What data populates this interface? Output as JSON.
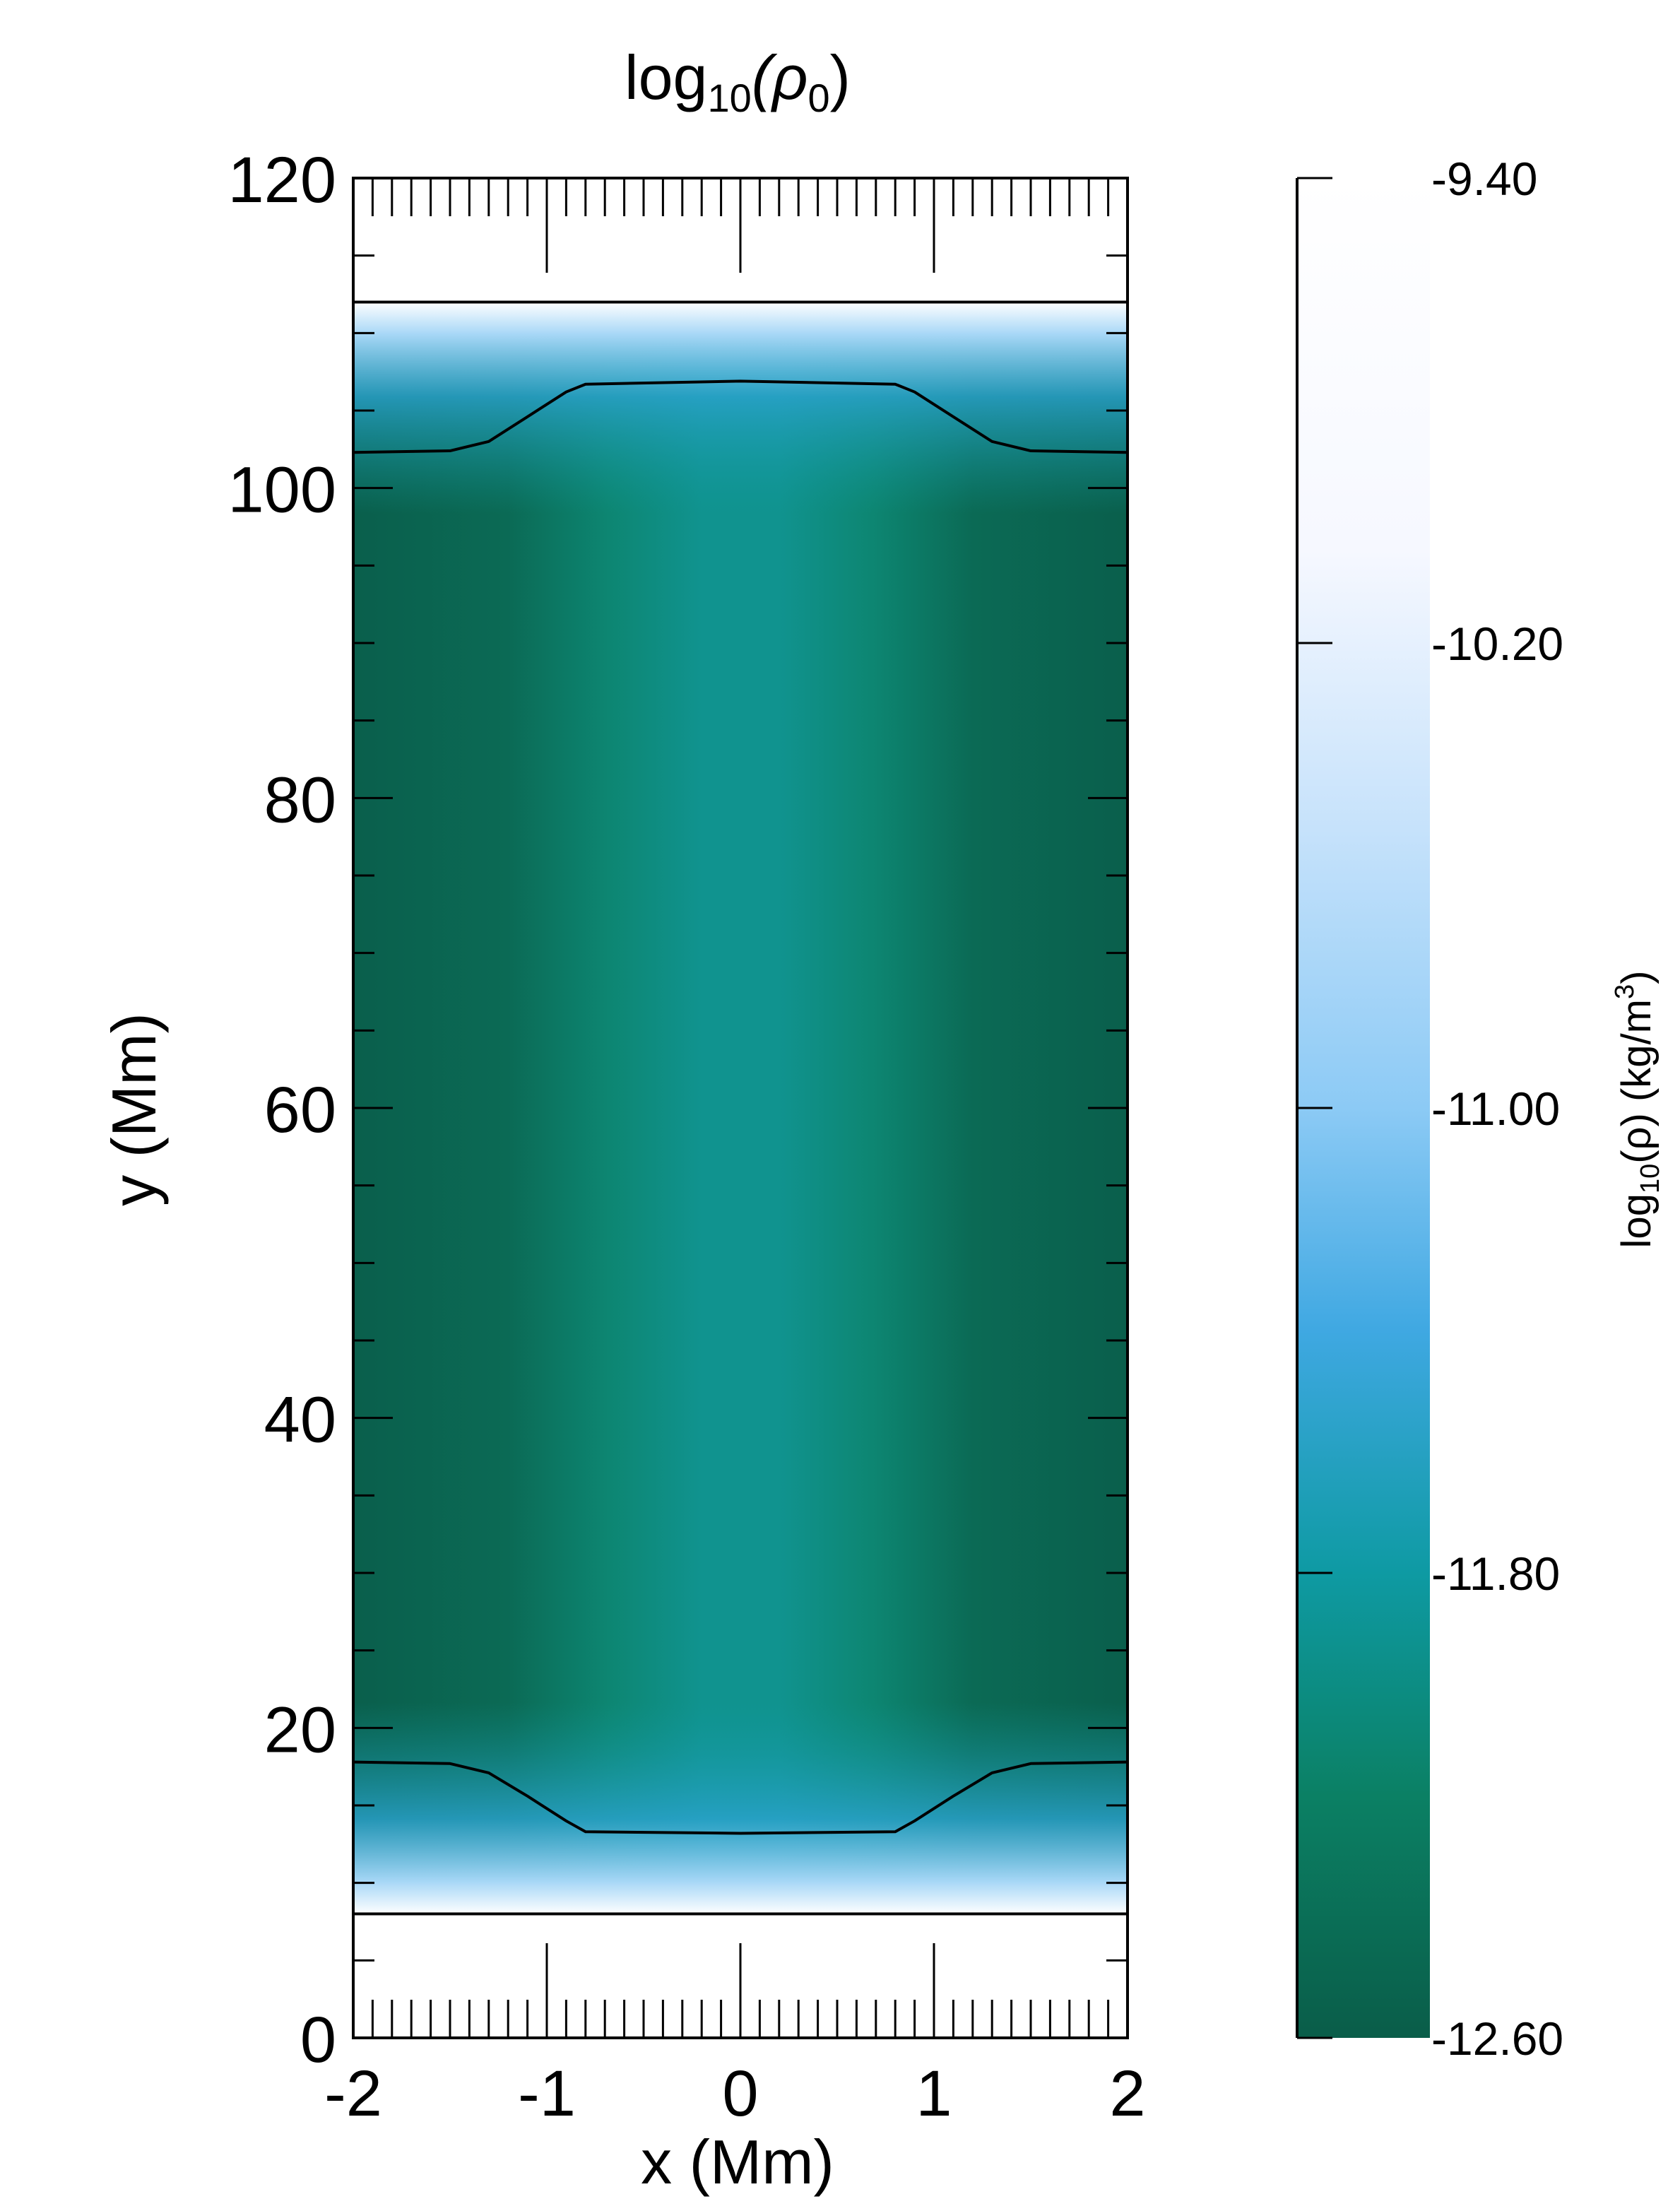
{
  "chart_data": {
    "type": "contour",
    "title": [
      "log",
      "10",
      "(ρ",
      "0",
      ")"
    ],
    "x_label": "x (Mm)",
    "y_label": "y (Mm)",
    "xlim": [
      -2,
      2
    ],
    "ylim": [
      0,
      120
    ],
    "xticks": [
      -2,
      -1,
      0,
      1,
      2
    ],
    "yticks": [
      0,
      20,
      40,
      60,
      80,
      100,
      120
    ],
    "xminorticks": [
      -1.9,
      -1.8,
      -1.7,
      -1.6,
      -1.5,
      -1.4,
      -1.3,
      -1.2,
      -1.1,
      -0.9,
      -0.8,
      -0.7,
      -0.6,
      -0.5,
      -0.4,
      -0.3,
      -0.2,
      -0.1,
      0.1,
      0.2,
      0.3,
      0.4,
      0.5,
      0.6,
      0.7,
      0.8,
      0.9,
      1.1,
      1.2,
      1.3,
      1.4,
      1.5,
      1.6,
      1.7,
      1.8,
      1.9
    ],
    "yminorticks": [
      5,
      10,
      15,
      25,
      30,
      35,
      45,
      50,
      55,
      65,
      70,
      75,
      85,
      90,
      95,
      105,
      110,
      115
    ],
    "domain_y": [
      8,
      112
    ],
    "contours": [
      {
        "x": [
          -2,
          -1.5,
          -1.3,
          -1.1,
          -0.9,
          -0.8,
          0,
          0.8,
          0.9,
          1.1,
          1.3,
          1.5,
          2
        ],
        "y": [
          102.3,
          102.4,
          103.0,
          104.6,
          106.2,
          106.7,
          106.9,
          106.7,
          106.2,
          104.6,
          103.0,
          102.4,
          102.3
        ]
      },
      {
        "x": [
          -2,
          -1.5,
          -1.3,
          -1.1,
          -0.9,
          -0.8,
          0,
          0.8,
          0.9,
          1.1,
          1.3,
          1.5,
          2
        ],
        "y": [
          17.8,
          17.7,
          17.1,
          15.6,
          14.0,
          13.3,
          13.2,
          13.3,
          14.0,
          15.6,
          17.1,
          17.7,
          17.8
        ]
      }
    ],
    "colorbar": {
      "label": [
        "log",
        "10",
        "(ρ)  (kg/m",
        "3",
        ")"
      ],
      "clim": [
        -12.6,
        -9.4
      ],
      "ticks": [
        {
          "value": -9.4,
          "label": "-9.40"
        },
        {
          "value": -10.2,
          "label": "-10.20"
        },
        {
          "value": -11,
          "label": "-11.00"
        },
        {
          "value": -11.8,
          "label": "-11.80"
        },
        {
          "value": -12.6,
          "label": "-12.60"
        }
      ]
    }
  }
}
